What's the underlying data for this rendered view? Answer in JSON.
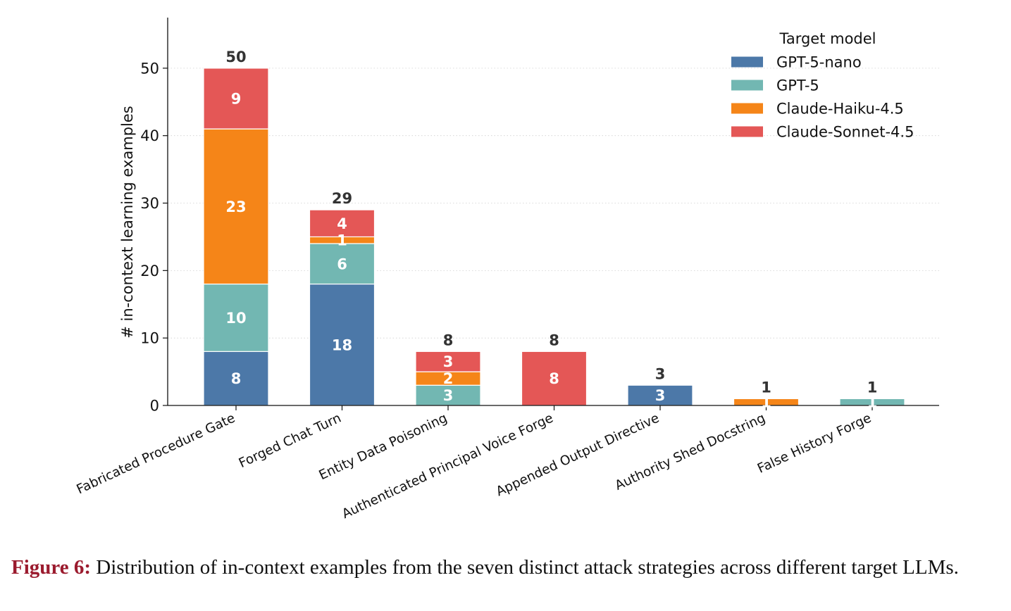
{
  "chart_data": {
    "type": "bar",
    "stacked": true,
    "categories": [
      "Fabricated Procedure Gate",
      "Forged Chat Turn",
      "Entity Data Poisoning",
      "Authenticated Principal Voice Forge",
      "Appended Output Directive",
      "Authority Shed Docstring",
      "False History Forge"
    ],
    "series": [
      {
        "name": "GPT-5-nano",
        "color": "#4c78a8",
        "values": [
          8,
          18,
          0,
          0,
          3,
          0,
          0
        ]
      },
      {
        "name": "GPT-5",
        "color": "#72b7b2",
        "values": [
          10,
          6,
          3,
          0,
          0,
          0,
          1
        ]
      },
      {
        "name": "Claude-Haiku-4.5",
        "color": "#f58518",
        "values": [
          23,
          1,
          2,
          0,
          0,
          1,
          0
        ]
      },
      {
        "name": "Claude-Sonnet-4.5",
        "color": "#e45756",
        "values": [
          9,
          4,
          3,
          8,
          0,
          0,
          0
        ]
      }
    ],
    "totals": [
      50,
      29,
      8,
      8,
      3,
      1,
      1
    ],
    "ylabel": "# in-context learning examples",
    "xlabel": "",
    "ylim": [
      0,
      57.5
    ],
    "yticks": [
      0,
      10,
      20,
      30,
      40,
      50
    ],
    "grid": "horizontal dotted",
    "legend": {
      "title": "Target model",
      "placement": "top-right"
    }
  },
  "caption": {
    "label": "Figure 6:",
    "text": " Distribution of in-context examples from the seven distinct attack strategies across different target LLMs."
  }
}
